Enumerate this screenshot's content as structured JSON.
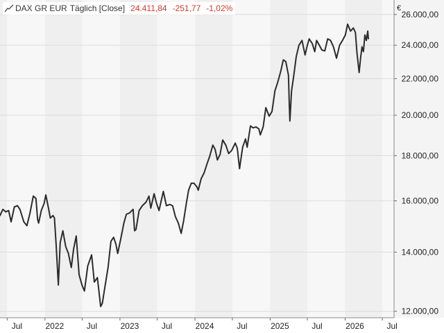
{
  "legend": {
    "series_name": "DAX GR EUR",
    "interval": "Täglich [Close]",
    "last_value": "24.411,84",
    "change": "-251,77",
    "change_pct": "-1,02%",
    "icon": "line-chart-icon"
  },
  "colors": {
    "line": "#2b2b2b",
    "band_light": "#f7f7f7",
    "band_dark": "#efefef",
    "right_panel": "#f4f4f4",
    "gridline": "#dcdcdc",
    "negative": "#d23a2a"
  },
  "chart_data": {
    "type": "line",
    "title": "DAX GR EUR",
    "xlabel": "",
    "ylabel": "",
    "y_unit": "€",
    "y_scale": "log",
    "ylim": [
      11800,
      27000
    ],
    "xlim": [
      "2021-05-27",
      "2026-08-27"
    ],
    "grid": true,
    "legend_position": "top-left",
    "x_ticks": [
      {
        "date": "2021-07-01",
        "label": "Jul"
      },
      {
        "date": "2022-01-01",
        "label": "2022"
      },
      {
        "date": "2022-07-01",
        "label": "Jul"
      },
      {
        "date": "2023-01-01",
        "label": "2023"
      },
      {
        "date": "2023-07-01",
        "label": "Jul"
      },
      {
        "date": "2024-01-01",
        "label": "2024"
      },
      {
        "date": "2024-07-01",
        "label": "Jul"
      },
      {
        "date": "2025-01-01",
        "label": "2025"
      },
      {
        "date": "2025-07-01",
        "label": "Jul"
      },
      {
        "date": "2026-01-01",
        "label": "2026"
      },
      {
        "date": "2026-07-01",
        "label": "Jul"
      }
    ],
    "y_ticks": [
      {
        "value": 12000,
        "label": "12.000,00"
      },
      {
        "value": 14000,
        "label": "14.000,00"
      },
      {
        "value": 16000,
        "label": "16.000,00"
      },
      {
        "value": 18000,
        "label": "18.000,00"
      },
      {
        "value": 20000,
        "label": "20.000,00"
      },
      {
        "value": 22000,
        "label": "22.000,00"
      },
      {
        "value": 24000,
        "label": "24.000,00"
      },
      {
        "value": 26000,
        "label": "26.000,00"
      }
    ],
    "series": [
      {
        "name": "DAX GR EUR",
        "points": [
          [
            "2021-05-27",
            15400
          ],
          [
            "2021-06-10",
            15650
          ],
          [
            "2021-06-24",
            15550
          ],
          [
            "2021-07-08",
            15600
          ],
          [
            "2021-07-20",
            15150
          ],
          [
            "2021-08-05",
            15750
          ],
          [
            "2021-08-20",
            15800
          ],
          [
            "2021-09-01",
            15650
          ],
          [
            "2021-09-20",
            15150
          ],
          [
            "2021-10-05",
            15000
          ],
          [
            "2021-10-20",
            15500
          ],
          [
            "2021-11-05",
            16200
          ],
          [
            "2021-11-18",
            16100
          ],
          [
            "2021-11-26",
            15250
          ],
          [
            "2021-12-01",
            15100
          ],
          [
            "2021-12-14",
            15600
          ],
          [
            "2021-12-28",
            15900
          ],
          [
            "2022-01-05",
            16250
          ],
          [
            "2022-01-18",
            15700
          ],
          [
            "2022-01-27",
            15300
          ],
          [
            "2022-02-09",
            15400
          ],
          [
            "2022-02-16",
            15300
          ],
          [
            "2022-02-24",
            14300
          ],
          [
            "2022-03-07",
            12850
          ],
          [
            "2022-03-16",
            14350
          ],
          [
            "2022-03-29",
            14800
          ],
          [
            "2022-04-12",
            14200
          ],
          [
            "2022-04-25",
            13950
          ],
          [
            "2022-05-09",
            13450
          ],
          [
            "2022-05-20",
            14100
          ],
          [
            "2022-06-02",
            14600
          ],
          [
            "2022-06-16",
            13200
          ],
          [
            "2022-06-30",
            12850
          ],
          [
            "2022-07-12",
            12650
          ],
          [
            "2022-07-28",
            13500
          ],
          [
            "2022-08-16",
            13900
          ],
          [
            "2022-08-29",
            12950
          ],
          [
            "2022-09-13",
            13100
          ],
          [
            "2022-09-29",
            12150
          ],
          [
            "2022-10-07",
            12250
          ],
          [
            "2022-10-20",
            12800
          ],
          [
            "2022-11-04",
            13450
          ],
          [
            "2022-11-18",
            14400
          ],
          [
            "2022-12-01",
            14550
          ],
          [
            "2022-12-12",
            14300
          ],
          [
            "2022-12-21",
            13950
          ],
          [
            "2023-01-05",
            14500
          ],
          [
            "2023-01-20",
            15100
          ],
          [
            "2023-02-01",
            15450
          ],
          [
            "2023-02-16",
            15500
          ],
          [
            "2023-03-06",
            15650
          ],
          [
            "2023-03-13",
            14800
          ],
          [
            "2023-03-20",
            14850
          ],
          [
            "2023-04-04",
            15600
          ],
          [
            "2023-04-20",
            15800
          ],
          [
            "2023-05-08",
            15950
          ],
          [
            "2023-05-22",
            16200
          ],
          [
            "2023-05-31",
            15700
          ],
          [
            "2023-06-16",
            16300
          ],
          [
            "2023-06-28",
            15900
          ],
          [
            "2023-07-10",
            15600
          ],
          [
            "2023-07-31",
            16400
          ],
          [
            "2023-08-15",
            15800
          ],
          [
            "2023-09-01",
            15850
          ],
          [
            "2023-09-14",
            15800
          ],
          [
            "2023-09-28",
            15350
          ],
          [
            "2023-10-12",
            15100
          ],
          [
            "2023-10-26",
            14700
          ],
          [
            "2023-11-07",
            15200
          ],
          [
            "2023-11-20",
            15900
          ],
          [
            "2023-12-01",
            16450
          ],
          [
            "2023-12-14",
            16750
          ],
          [
            "2023-12-27",
            16750
          ],
          [
            "2024-01-10",
            16600
          ],
          [
            "2024-01-17",
            16450
          ],
          [
            "2024-01-31",
            16950
          ],
          [
            "2024-02-14",
            17200
          ],
          [
            "2024-02-28",
            17600
          ],
          [
            "2024-03-12",
            17950
          ],
          [
            "2024-03-28",
            18500
          ],
          [
            "2024-04-08",
            18300
          ],
          [
            "2024-04-19",
            17800
          ],
          [
            "2024-05-02",
            18050
          ],
          [
            "2024-05-15",
            18750
          ],
          [
            "2024-05-30",
            18500
          ],
          [
            "2024-06-13",
            18100
          ],
          [
            "2024-06-28",
            18250
          ],
          [
            "2024-07-15",
            18600
          ],
          [
            "2024-07-25",
            18350
          ],
          [
            "2024-08-05",
            17400
          ],
          [
            "2024-08-20",
            18400
          ],
          [
            "2024-09-03",
            18800
          ],
          [
            "2024-09-11",
            18400
          ],
          [
            "2024-09-27",
            19450
          ],
          [
            "2024-10-10",
            19350
          ],
          [
            "2024-10-24",
            19400
          ],
          [
            "2024-11-07",
            19300
          ],
          [
            "2024-11-14",
            19000
          ],
          [
            "2024-11-28",
            19400
          ],
          [
            "2024-12-11",
            20400
          ],
          [
            "2024-12-27",
            19950
          ],
          [
            "2025-01-10",
            20200
          ],
          [
            "2025-01-24",
            21300
          ],
          [
            "2025-02-07",
            21800
          ],
          [
            "2025-02-21",
            22400
          ],
          [
            "2025-03-06",
            23100
          ],
          [
            "2025-03-18",
            23000
          ],
          [
            "2025-03-31",
            22200
          ],
          [
            "2025-04-04",
            20600
          ],
          [
            "2025-04-07",
            19700
          ],
          [
            "2025-04-15",
            21300
          ],
          [
            "2025-04-25",
            22100
          ],
          [
            "2025-05-08",
            23300
          ],
          [
            "2025-05-21",
            24000
          ],
          [
            "2025-06-05",
            24300
          ],
          [
            "2025-06-20",
            23400
          ],
          [
            "2025-07-01",
            24000
          ],
          [
            "2025-07-10",
            24400
          ],
          [
            "2025-07-25",
            24100
          ],
          [
            "2025-08-06",
            23600
          ],
          [
            "2025-08-15",
            24300
          ],
          [
            "2025-08-28",
            24000
          ],
          [
            "2025-09-10",
            23700
          ],
          [
            "2025-09-24",
            23650
          ],
          [
            "2025-10-08",
            24400
          ],
          [
            "2025-10-22",
            24300
          ],
          [
            "2025-11-05",
            23900
          ],
          [
            "2025-11-20",
            23200
          ],
          [
            "2025-12-05",
            24000
          ],
          [
            "2025-12-19",
            24300
          ],
          [
            "2026-01-02",
            24650
          ],
          [
            "2026-01-13",
            25350
          ],
          [
            "2026-01-27",
            24900
          ],
          [
            "2026-02-10",
            25100
          ],
          [
            "2026-02-20",
            24800
          ],
          [
            "2026-02-27",
            23600
          ],
          [
            "2026-03-05",
            22900
          ],
          [
            "2026-03-10",
            22350
          ],
          [
            "2026-03-17",
            23200
          ],
          [
            "2026-03-24",
            23900
          ],
          [
            "2026-03-31",
            23600
          ],
          [
            "2026-04-07",
            24650
          ],
          [
            "2026-04-14",
            24300
          ],
          [
            "2026-04-21",
            24900
          ],
          [
            "2026-04-24",
            24412
          ]
        ]
      }
    ]
  }
}
